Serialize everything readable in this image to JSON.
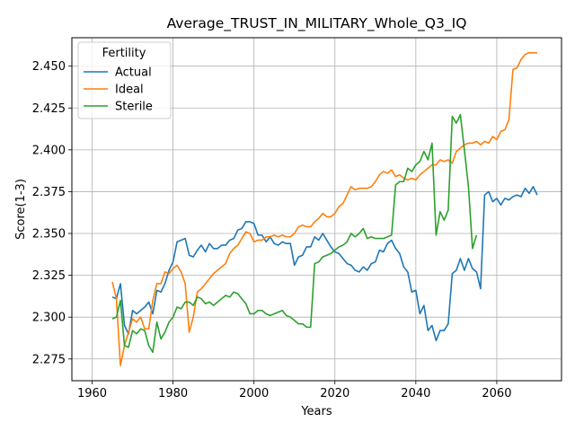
{
  "chart_data": {
    "type": "line",
    "title": "Average_TRUST_IN_MILITARY_Whole_Q3_IQ",
    "xlabel": "Years",
    "ylabel": "Score(1-3)",
    "xlim": [
      1955,
      2076
    ],
    "ylim": [
      2.262,
      2.467
    ],
    "x_ticks": [
      1960,
      1980,
      2000,
      2020,
      2040,
      2060
    ],
    "y_ticks": [
      2.275,
      2.3,
      2.325,
      2.35,
      2.375,
      2.4,
      2.425,
      2.45
    ],
    "x_tick_labels": [
      "1960",
      "1980",
      "2000",
      "2020",
      "2040",
      "2060"
    ],
    "y_tick_labels": [
      "2.275",
      "2.300",
      "2.325",
      "2.350",
      "2.375",
      "2.400",
      "2.425",
      "2.450"
    ],
    "grid": true,
    "legend": {
      "title": "Fertility",
      "position": "top-left"
    },
    "series": [
      {
        "name": "Actual",
        "color": "#1f77b4",
        "points": [
          [
            1965,
            2.312
          ],
          [
            1966,
            2.311
          ],
          [
            1967,
            2.32
          ],
          [
            1968,
            2.295
          ],
          [
            1969,
            2.29
          ],
          [
            1970,
            2.304
          ],
          [
            1971,
            2.302
          ],
          [
            1972,
            2.304
          ],
          [
            1973,
            2.306
          ],
          [
            1974,
            2.309
          ],
          [
            1975,
            2.302
          ],
          [
            1976,
            2.316
          ],
          [
            1977,
            2.315
          ],
          [
            1978,
            2.32
          ],
          [
            1979,
            2.328
          ],
          [
            1980,
            2.333
          ],
          [
            1981,
            2.345
          ],
          [
            1982,
            2.346
          ],
          [
            1983,
            2.347
          ],
          [
            1984,
            2.337
          ],
          [
            1985,
            2.336
          ],
          [
            1986,
            2.34
          ],
          [
            1987,
            2.343
          ],
          [
            1988,
            2.339
          ],
          [
            1989,
            2.344
          ],
          [
            1990,
            2.341
          ],
          [
            1991,
            2.341
          ],
          [
            1992,
            2.343
          ],
          [
            1993,
            2.343
          ],
          [
            1994,
            2.346
          ],
          [
            1995,
            2.347
          ],
          [
            1996,
            2.352
          ],
          [
            1997,
            2.353
          ],
          [
            1998,
            2.357
          ],
          [
            1999,
            2.357
          ],
          [
            2000,
            2.356
          ],
          [
            2001,
            2.349
          ],
          [
            2002,
            2.349
          ],
          [
            2003,
            2.345
          ],
          [
            2004,
            2.348
          ],
          [
            2005,
            2.344
          ],
          [
            2006,
            2.343
          ],
          [
            2007,
            2.345
          ],
          [
            2008,
            2.344
          ],
          [
            2009,
            2.344
          ],
          [
            2010,
            2.331
          ],
          [
            2011,
            2.336
          ],
          [
            2012,
            2.337
          ],
          [
            2013,
            2.342
          ],
          [
            2014,
            2.342
          ],
          [
            2015,
            2.348
          ],
          [
            2016,
            2.346
          ],
          [
            2017,
            2.35
          ],
          [
            2018,
            2.346
          ],
          [
            2019,
            2.342
          ],
          [
            2020,
            2.339
          ],
          [
            2021,
            2.338
          ],
          [
            2022,
            2.335
          ],
          [
            2023,
            2.332
          ],
          [
            2024,
            2.331
          ],
          [
            2025,
            2.328
          ],
          [
            2026,
            2.327
          ],
          [
            2027,
            2.33
          ],
          [
            2028,
            2.328
          ],
          [
            2029,
            2.332
          ],
          [
            2030,
            2.333
          ],
          [
            2031,
            2.34
          ],
          [
            2032,
            2.339
          ],
          [
            2033,
            2.344
          ],
          [
            2034,
            2.346
          ],
          [
            2035,
            2.341
          ],
          [
            2036,
            2.338
          ],
          [
            2037,
            2.33
          ],
          [
            2038,
            2.327
          ],
          [
            2039,
            2.315
          ],
          [
            2040,
            2.316
          ],
          [
            2041,
            2.302
          ],
          [
            2042,
            2.307
          ],
          [
            2043,
            2.292
          ],
          [
            2044,
            2.295
          ],
          [
            2045,
            2.286
          ],
          [
            2046,
            2.292
          ],
          [
            2047,
            2.292
          ],
          [
            2048,
            2.296
          ],
          [
            2049,
            2.326
          ],
          [
            2050,
            2.328
          ],
          [
            2051,
            2.335
          ],
          [
            2052,
            2.328
          ],
          [
            2053,
            2.335
          ],
          [
            2054,
            2.329
          ],
          [
            2055,
            2.327
          ],
          [
            2056,
            2.317
          ],
          [
            2057,
            2.373
          ],
          [
            2058,
            2.375
          ],
          [
            2059,
            2.369
          ],
          [
            2060,
            2.371
          ],
          [
            2061,
            2.367
          ],
          [
            2062,
            2.371
          ],
          [
            2063,
            2.37
          ],
          [
            2064,
            2.372
          ],
          [
            2065,
            2.373
          ],
          [
            2066,
            2.372
          ],
          [
            2067,
            2.377
          ],
          [
            2068,
            2.374
          ],
          [
            2069,
            2.378
          ],
          [
            2070,
            2.373
          ]
        ]
      },
      {
        "name": "Ideal",
        "color": "#ff7f0e",
        "points": [
          [
            1965,
            2.321
          ],
          [
            1966,
            2.311
          ],
          [
            1967,
            2.271
          ],
          [
            1968,
            2.283
          ],
          [
            1969,
            2.291
          ],
          [
            1970,
            2.299
          ],
          [
            1971,
            2.297
          ],
          [
            1972,
            2.3
          ],
          [
            1973,
            2.293
          ],
          [
            1974,
            2.293
          ],
          [
            1975,
            2.31
          ],
          [
            1976,
            2.32
          ],
          [
            1977,
            2.32
          ],
          [
            1978,
            2.327
          ],
          [
            1979,
            2.326
          ],
          [
            1980,
            2.329
          ],
          [
            1981,
            2.331
          ],
          [
            1982,
            2.327
          ],
          [
            1983,
            2.32
          ],
          [
            1984,
            2.291
          ],
          [
            1985,
            2.3
          ],
          [
            1986,
            2.315
          ],
          [
            1987,
            2.317
          ],
          [
            1988,
            2.32
          ],
          [
            1989,
            2.323
          ],
          [
            1990,
            2.326
          ],
          [
            1991,
            2.328
          ],
          [
            1992,
            2.33
          ],
          [
            1993,
            2.332
          ],
          [
            1994,
            2.338
          ],
          [
            1995,
            2.341
          ],
          [
            1996,
            2.343
          ],
          [
            1997,
            2.347
          ],
          [
            1998,
            2.351
          ],
          [
            1999,
            2.35
          ],
          [
            2000,
            2.345
          ],
          [
            2001,
            2.346
          ],
          [
            2002,
            2.346
          ],
          [
            2003,
            2.348
          ],
          [
            2004,
            2.348
          ],
          [
            2005,
            2.349
          ],
          [
            2006,
            2.348
          ],
          [
            2007,
            2.349
          ],
          [
            2008,
            2.348
          ],
          [
            2009,
            2.348
          ],
          [
            2010,
            2.35
          ],
          [
            2011,
            2.354
          ],
          [
            2012,
            2.355
          ],
          [
            2013,
            2.354
          ],
          [
            2014,
            2.354
          ],
          [
            2015,
            2.357
          ],
          [
            2016,
            2.359
          ],
          [
            2017,
            2.362
          ],
          [
            2018,
            2.36
          ],
          [
            2019,
            2.36
          ],
          [
            2020,
            2.362
          ],
          [
            2021,
            2.366
          ],
          [
            2022,
            2.368
          ],
          [
            2023,
            2.373
          ],
          [
            2024,
            2.378
          ],
          [
            2025,
            2.376
          ],
          [
            2026,
            2.377
          ],
          [
            2027,
            2.377
          ],
          [
            2028,
            2.377
          ],
          [
            2029,
            2.378
          ],
          [
            2030,
            2.381
          ],
          [
            2031,
            2.385
          ],
          [
            2032,
            2.387
          ],
          [
            2033,
            2.386
          ],
          [
            2034,
            2.388
          ],
          [
            2035,
            2.384
          ],
          [
            2036,
            2.385
          ],
          [
            2037,
            2.383
          ],
          [
            2038,
            2.382
          ],
          [
            2039,
            2.383
          ],
          [
            2040,
            2.382
          ],
          [
            2041,
            2.385
          ],
          [
            2042,
            2.387
          ],
          [
            2043,
            2.389
          ],
          [
            2044,
            2.391
          ],
          [
            2045,
            2.391
          ],
          [
            2046,
            2.394
          ],
          [
            2047,
            2.393
          ],
          [
            2048,
            2.394
          ],
          [
            2049,
            2.392
          ],
          [
            2050,
            2.399
          ],
          [
            2051,
            2.401
          ],
          [
            2052,
            2.403
          ],
          [
            2053,
            2.404
          ],
          [
            2054,
            2.404
          ],
          [
            2055,
            2.405
          ],
          [
            2056,
            2.403
          ],
          [
            2057,
            2.405
          ],
          [
            2058,
            2.404
          ],
          [
            2059,
            2.408
          ],
          [
            2060,
            2.406
          ],
          [
            2061,
            2.411
          ],
          [
            2062,
            2.412
          ],
          [
            2063,
            2.418
          ],
          [
            2064,
            2.448
          ],
          [
            2065,
            2.449
          ],
          [
            2066,
            2.454
          ],
          [
            2067,
            2.457
          ],
          [
            2068,
            2.458
          ],
          [
            2069,
            2.458
          ],
          [
            2070,
            2.458
          ]
        ]
      },
      {
        "name": "Sterile",
        "color": "#2ca02c",
        "points": [
          [
            1965,
            2.299
          ],
          [
            1966,
            2.3
          ],
          [
            1967,
            2.31
          ],
          [
            1968,
            2.283
          ],
          [
            1969,
            2.282
          ],
          [
            1970,
            2.292
          ],
          [
            1971,
            2.29
          ],
          [
            1972,
            2.293
          ],
          [
            1973,
            2.292
          ],
          [
            1974,
            2.283
          ],
          [
            1975,
            2.279
          ],
          [
            1976,
            2.297
          ],
          [
            1977,
            2.287
          ],
          [
            1978,
            2.291
          ],
          [
            1979,
            2.297
          ],
          [
            1980,
            2.3
          ],
          [
            1981,
            2.306
          ],
          [
            1982,
            2.305
          ],
          [
            1983,
            2.309
          ],
          [
            1984,
            2.309
          ],
          [
            1985,
            2.307
          ],
          [
            1986,
            2.312
          ],
          [
            1987,
            2.311
          ],
          [
            1988,
            2.308
          ],
          [
            1989,
            2.309
          ],
          [
            1990,
            2.307
          ],
          [
            1991,
            2.309
          ],
          [
            1992,
            2.311
          ],
          [
            1993,
            2.313
          ],
          [
            1994,
            2.312
          ],
          [
            1995,
            2.315
          ],
          [
            1996,
            2.314
          ],
          [
            1997,
            2.311
          ],
          [
            1998,
            2.308
          ],
          [
            1999,
            2.302
          ],
          [
            2000,
            2.302
          ],
          [
            2001,
            2.304
          ],
          [
            2002,
            2.304
          ],
          [
            2003,
            2.302
          ],
          [
            2004,
            2.301
          ],
          [
            2005,
            2.302
          ],
          [
            2006,
            2.303
          ],
          [
            2007,
            2.304
          ],
          [
            2008,
            2.301
          ],
          [
            2009,
            2.3
          ],
          [
            2010,
            2.298
          ],
          [
            2011,
            2.296
          ],
          [
            2012,
            2.296
          ],
          [
            2013,
            2.294
          ],
          [
            2014,
            2.294
          ],
          [
            2015,
            2.332
          ],
          [
            2016,
            2.333
          ],
          [
            2017,
            2.336
          ],
          [
            2018,
            2.337
          ],
          [
            2019,
            2.338
          ],
          [
            2020,
            2.34
          ],
          [
            2021,
            2.342
          ],
          [
            2022,
            2.343
          ],
          [
            2023,
            2.345
          ],
          [
            2024,
            2.35
          ],
          [
            2025,
            2.348
          ],
          [
            2026,
            2.35
          ],
          [
            2027,
            2.353
          ],
          [
            2028,
            2.347
          ],
          [
            2029,
            2.348
          ],
          [
            2030,
            2.347
          ],
          [
            2031,
            2.347
          ],
          [
            2032,
            2.347
          ],
          [
            2033,
            2.348
          ],
          [
            2034,
            2.349
          ],
          [
            2035,
            2.379
          ],
          [
            2036,
            2.381
          ],
          [
            2037,
            2.381
          ],
          [
            2038,
            2.389
          ],
          [
            2039,
            2.387
          ],
          [
            2040,
            2.391
          ],
          [
            2041,
            2.393
          ],
          [
            2042,
            2.399
          ],
          [
            2043,
            2.394
          ],
          [
            2044,
            2.404
          ],
          [
            2045,
            2.349
          ],
          [
            2046,
            2.363
          ],
          [
            2047,
            2.358
          ],
          [
            2048,
            2.364
          ],
          [
            2049,
            2.42
          ],
          [
            2050,
            2.416
          ],
          [
            2051,
            2.421
          ],
          [
            2052,
            2.4
          ],
          [
            2053,
            2.378
          ],
          [
            2054,
            2.341
          ],
          [
            2055,
            2.349
          ]
        ]
      }
    ]
  }
}
